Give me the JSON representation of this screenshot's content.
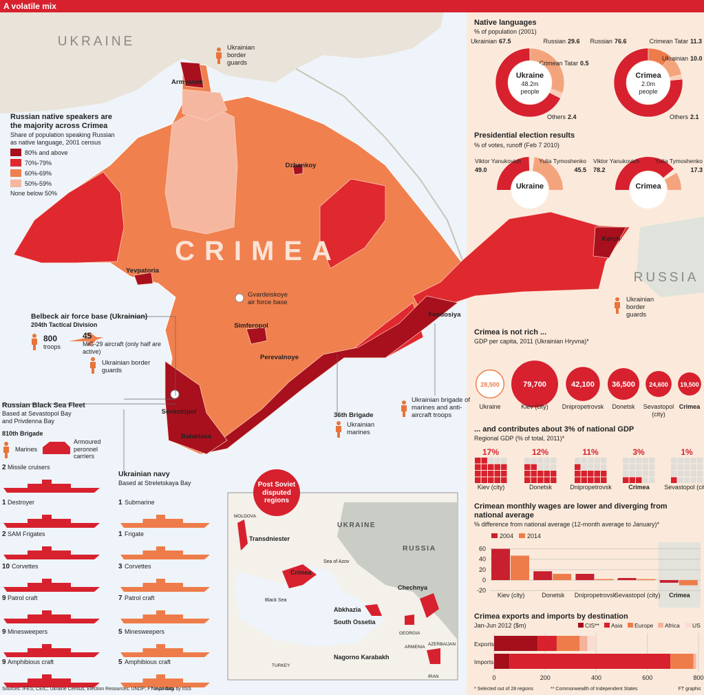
{
  "header": {
    "title": "A volatile mix"
  },
  "map": {
    "country_labels": [
      "UKRAINE",
      "CRIMEA",
      "RUSSIA"
    ],
    "cities": [
      "Armyansk",
      "Dzhankoy",
      "Yevpatoria",
      "Simferopol",
      "Perevalnoye",
      "Feodosiya",
      "Kerch",
      "Sevastopol",
      "Balaklava"
    ],
    "notes": [
      "Ukrainian border guards",
      "Ukrainian border guards",
      "Gvardeiskoye air force base",
      "36th Brigade",
      "Ukrainian marines",
      "Ukrainian brigade of marines and anti-aircraft troops"
    ]
  },
  "legend": {
    "title": "Russian native speakers are the majority across Crimea",
    "subtitle": "Share of population speaking Russian as native language, 2001 census",
    "items": [
      {
        "label": "80% and above",
        "color": "#a8101e"
      },
      {
        "label": "70%-79%",
        "color": "#e0282f"
      },
      {
        "label": "60%-69%",
        "color": "#f0804e"
      },
      {
        "label": "50%-59%",
        "color": "#f6b7a0"
      }
    ],
    "note": "None below 50%"
  },
  "belbeck": {
    "title": "Belbeck air force base (Ukrainian)",
    "subtitle": "204th Tactical Division",
    "troops": "800",
    "troops_label": "troops",
    "aircraft": "45",
    "aircraft_label": "MiG-29 aircraft (only half are active)",
    "guards": "Ukrainian border guards"
  },
  "fleet": {
    "title": "Russian Black Sea Fleet",
    "subtitle": "Based at Sevastopol Bay and Privdenna Bay",
    "brigade": "810th Brigade",
    "marines": "Marines",
    "carriers": "Armoured peronnel carriers",
    "color": "#d7212e",
    "ships": [
      {
        "count": "2",
        "name": "Missile cruisers"
      },
      {
        "count": "1",
        "name": "Destroyer"
      },
      {
        "count": "2",
        "name": "SAM Frigates"
      },
      {
        "count": "10",
        "name": "Corvettes"
      },
      {
        "count": "9",
        "name": "Patrol craft"
      },
      {
        "count": "9",
        "name": "Minesweepers"
      },
      {
        "count": "9",
        "name": "Amphibious craft"
      }
    ]
  },
  "navy": {
    "title": "Ukrainian navy",
    "subtitle": "Based at Streletskaya Bay",
    "color": "#ee7c4a",
    "ships": [
      {
        "count": "1",
        "name": "Submarine"
      },
      {
        "count": "1",
        "name": "Frigate"
      },
      {
        "count": "3",
        "name": "Corvettes"
      },
      {
        "count": "7",
        "name": "Patrol craft"
      },
      {
        "count": "5",
        "name": "Minesweepers"
      },
      {
        "count": "5",
        "name": "Amphibious craft"
      }
    ]
  },
  "inset": {
    "badge": "Post Soviet disputed regions",
    "labels": [
      "MOLDOVA",
      "UKRAINE",
      "RUSSIA",
      "Transdniester",
      "Crimea",
      "Sea of Azov",
      "Black Sea",
      "Chechnya",
      "Abkhazia",
      "South Ossetia",
      "GEORGIA",
      "ARMENIA",
      "AZERBAIJAN",
      "Nagorno Karabakh",
      "TURKEY",
      "IRAN"
    ]
  },
  "languages": {
    "title": "Native languages",
    "subtitle": "% of population (2001)",
    "charts": [
      {
        "name": "Ukraine",
        "population": "48.2m",
        "unit": "people",
        "segments": [
          {
            "name": "Ukrainian",
            "value": 67.5,
            "value_label": "67.5",
            "color": "#d7212e"
          },
          {
            "name": "Russian",
            "value": 29.6,
            "value_label": "29.6",
            "color": "#f4a47c"
          },
          {
            "name": "Crimean Tatar",
            "value": 0.5,
            "value_label": "0.5",
            "color": "#ee7c4a"
          },
          {
            "name": "Others",
            "value": 2.4,
            "value_label": "2.4",
            "color": "#f8cdb8"
          }
        ]
      },
      {
        "name": "Crimea",
        "population": "2.0m",
        "unit": "people",
        "segments": [
          {
            "name": "Russian",
            "value": 76.6,
            "value_label": "76.6",
            "color": "#d7212e"
          },
          {
            "name": "Crimean Tatar",
            "value": 11.3,
            "value_label": "11.3",
            "color": "#ee7c4a"
          },
          {
            "name": "Ukrainian",
            "value": 10.0,
            "value_label": "10.0",
            "color": "#f4a47c"
          },
          {
            "name": "Others",
            "value": 2.1,
            "value_label": "2.1",
            "color": "#f8cdb8"
          }
        ]
      }
    ]
  },
  "elections": {
    "title": "Presidential election results",
    "subtitle": "% of votes, runoff (Feb 7 2010)",
    "charts": [
      {
        "name": "Ukraine",
        "candidates": [
          {
            "name": "Viktor Yanukovich",
            "value": 49.0,
            "value_label": "49.0",
            "color": "#d7212e"
          },
          {
            "name": "Yulia Tymoshenko",
            "value": 45.5,
            "value_label": "45.5",
            "color": "#f4a47c"
          }
        ]
      },
      {
        "name": "Crimea",
        "candidates": [
          {
            "name": "Viktor Yanukovich",
            "value": 78.2,
            "value_label": "78.2",
            "color": "#d7212e"
          },
          {
            "name": "Yulia Tymoshenko",
            "value": 17.3,
            "value_label": "17.3",
            "color": "#f4a47c"
          }
        ]
      }
    ]
  },
  "gdp": {
    "type": "bubble",
    "title": "Crimea is not rich ...",
    "subtitle": "GDP per capita, 2011 (Ukrainian Hryvna)*",
    "categories": [
      "Ukraine",
      "Kiev (city)",
      "Dnipropetrovsk",
      "Donetsk",
      "Sevastopol (city)",
      "Crimea"
    ],
    "values": [
      28500,
      79700,
      42100,
      36500,
      24600,
      19500
    ],
    "value_labels": [
      "28,500",
      "79,700",
      "42,100",
      "36,500",
      "24,600",
      "19,500"
    ],
    "colors": [
      "#ffffff",
      "#d7212e",
      "#d7212e",
      "#d7212e",
      "#d7212e",
      "#d7212e"
    ]
  },
  "regional": {
    "type": "waffle",
    "title": "... and contributes about 3% of national GDP",
    "subtitle": "Regional GDP (% of total, 2011)*",
    "categories": [
      "Kiev (city)",
      "Donetsk",
      "Dnipropetrovsk",
      "Crimea",
      "Sevastopol (city)"
    ],
    "values": [
      17,
      12,
      11,
      3,
      1
    ],
    "value_labels": [
      "17%",
      "12%",
      "11%",
      "3%",
      "1%"
    ],
    "color": "#d7212e"
  },
  "wages": {
    "type": "bar",
    "title": "Crimean monthly wages are lower and diverging from national average",
    "subtitle": "% difference from national average (12-month average to January)*",
    "categories": [
      "Kiev (city)",
      "Donetsk",
      "Dnipropetrovsk",
      "Sevastopol (city)",
      "Crimea"
    ],
    "series": [
      {
        "name": "2004",
        "color": "#c8202f",
        "values": [
          60,
          17,
          12,
          4,
          -5
        ]
      },
      {
        "name": "2014",
        "color": "#ee7c4a",
        "values": [
          47,
          12,
          2,
          2,
          -10
        ]
      }
    ],
    "ylim": [
      -25,
      70
    ],
    "yticks": [
      60,
      40,
      20,
      0,
      -20
    ]
  },
  "trade": {
    "type": "stacked-barh",
    "title": "Crimea exports and imports by destination",
    "subtitle": "Jan-Jun 2012 ($m)",
    "categories": [
      "Exports",
      "Imports"
    ],
    "series": [
      {
        "name": "CIS**",
        "color": "#a50f1c",
        "values": [
          170,
          60
        ]
      },
      {
        "name": "Asia",
        "color": "#d7212e",
        "values": [
          75,
          630
        ]
      },
      {
        "name": "Europe",
        "color": "#ee7c4a",
        "values": [
          90,
          90
        ]
      },
      {
        "name": "Africa",
        "color": "#f5b39b",
        "values": [
          30,
          10
        ]
      },
      {
        "name": "US",
        "color": "#fadcd4",
        "values": [
          35,
          5
        ]
      }
    ],
    "xlim": [
      0,
      800
    ],
    "xticks": [
      0,
      200,
      400,
      600,
      800
    ]
  },
  "footer": {
    "sources": "Sources: IFES; CEIC; Ukraine Census; Election Resources; UNDP; FT reporting",
    "naval": "Naval data by IISS",
    "note1": "* Selected out of 28 regions",
    "note2": "** Commonwealth of Independent States",
    "credit": "FT graphic"
  }
}
